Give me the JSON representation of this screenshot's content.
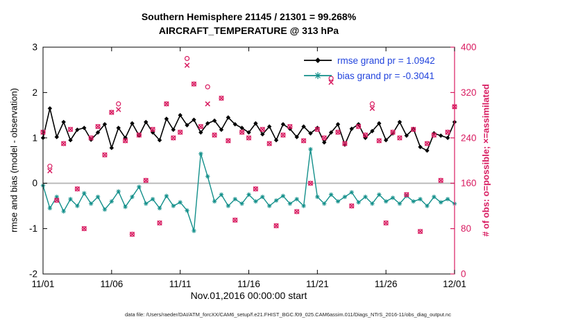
{
  "colors": {
    "rmse": "#000000",
    "bias": "#128f8a",
    "obs": "#d81b60",
    "legend_text": "#2244dd",
    "zero_line": "#bbbbbb",
    "axis": "#000000"
  },
  "caption": "data file: /Users/raeder/DAI/ATM_forcXX/CAM6_setup/f.e21.FHIST_BGC.f09_025.CAM6assim.011/Diags_NTrS_2016-11/obs_diag_output.nc",
  "chart_data": {
    "type": "line",
    "title_line1": "Southern Hemisphere 21145 / 21301 = 99.268%",
    "title_line2": "AIRCRAFT_TEMPERATURE @ 313 hPa",
    "xlabel": "Nov.01,2016 00:00:00 start",
    "ylabel_left": "rmse and bias (model - observation)",
    "ylabel_right": "# of obs: o=possible; ×=assimilated",
    "xlim": [
      0,
      30
    ],
    "ylim_left": [
      -2,
      3
    ],
    "ylim_right": [
      0,
      400
    ],
    "x_ticks": [
      0,
      5,
      10,
      15,
      20,
      25,
      30
    ],
    "x_tick_labels": [
      "11/01",
      "11/06",
      "11/11",
      "11/16",
      "11/21",
      "11/26",
      "12/01"
    ],
    "y_left_ticks": [
      -2,
      -1,
      0,
      1,
      2,
      3
    ],
    "y_left_tick_labels": [
      "-2",
      "-1",
      "0",
      "1",
      "2",
      "3"
    ],
    "y_right_ticks": [
      0,
      80,
      160,
      240,
      320,
      400
    ],
    "y_right_tick_labels": [
      "0",
      "80",
      "160",
      "240",
      "320",
      "400"
    ],
    "grand": {
      "rmse": 1.0942,
      "bias": -0.3041
    },
    "x": [
      0,
      0.5,
      1,
      1.5,
      2,
      2.5,
      3,
      3.5,
      4,
      4.5,
      5,
      5.5,
      6,
      6.5,
      7,
      7.5,
      8,
      8.5,
      9,
      9.5,
      10,
      10.5,
      11,
      11.5,
      12,
      12.5,
      13,
      13.5,
      14,
      14.5,
      15,
      15.5,
      16,
      16.5,
      17,
      17.5,
      18,
      18.5,
      19,
      19.5,
      20,
      20.5,
      21,
      21.5,
      22,
      22.5,
      23,
      23.5,
      24,
      24.5,
      25,
      25.5,
      26,
      26.5,
      27,
      27.5,
      28,
      28.5,
      29,
      29.5,
      30
    ],
    "series": [
      {
        "name": "rmse",
        "legend": "rmse grand pr = 1.0942",
        "color_key": "rmse",
        "marker": "diamond",
        "values": [
          1.0,
          1.65,
          1.02,
          1.35,
          0.95,
          1.18,
          1.22,
          0.96,
          1.12,
          1.3,
          0.78,
          1.22,
          1.0,
          1.32,
          1.05,
          1.35,
          1.12,
          0.95,
          1.42,
          1.18,
          1.5,
          1.28,
          1.4,
          1.12,
          1.32,
          1.38,
          1.18,
          1.45,
          1.3,
          1.22,
          1.12,
          1.32,
          1.08,
          1.25,
          0.95,
          1.3,
          1.2,
          1.02,
          1.25,
          1.1,
          1.22,
          0.9,
          1.12,
          1.3,
          0.85,
          1.2,
          1.3,
          1.0,
          1.15,
          1.32,
          0.95,
          1.1,
          1.35,
          1.05,
          1.2,
          0.8,
          0.72,
          1.1,
          1.05,
          1.0,
          1.35
        ]
      },
      {
        "name": "bias",
        "legend": "bias grand pr = -0.3041",
        "color_key": "bias",
        "marker": "asterisk",
        "values": [
          -0.05,
          -0.55,
          -0.3,
          -0.62,
          -0.35,
          -0.5,
          -0.22,
          -0.45,
          -0.3,
          -0.58,
          -0.4,
          -0.18,
          -0.52,
          -0.3,
          -0.08,
          -0.45,
          -0.35,
          -0.55,
          -0.28,
          -0.5,
          -0.42,
          -0.6,
          -1.05,
          0.65,
          0.15,
          -0.4,
          -0.25,
          -0.5,
          -0.35,
          -0.45,
          -0.25,
          -0.4,
          -0.3,
          -0.5,
          -0.38,
          -0.28,
          -0.45,
          -0.35,
          -0.5,
          0.75,
          -0.3,
          -0.45,
          -0.25,
          -0.4,
          -0.3,
          -0.2,
          -0.42,
          -0.3,
          -0.45,
          -0.25,
          -0.4,
          -0.32,
          -0.45,
          -0.28,
          -0.4,
          -0.35,
          -0.5,
          -0.3,
          -0.42,
          -0.35,
          -0.45
        ]
      }
    ],
    "scatter": [
      {
        "name": "obs_possible",
        "marker": "circle",
        "values": [
          250,
          190,
          130,
          230,
          255,
          150,
          80,
          240,
          260,
          210,
          285,
          300,
          235,
          70,
          245,
          165,
          255,
          90,
          300,
          240,
          250,
          380,
          335,
          260,
          330,
          245,
          310,
          235,
          95,
          250,
          240,
          150,
          255,
          230,
          85,
          245,
          260,
          110,
          235,
          160,
          255,
          240,
          345,
          250,
          230,
          120,
          260,
          245,
          300,
          235,
          90,
          250,
          240,
          140,
          255,
          75,
          230,
          245,
          165,
          250,
          295
        ]
      },
      {
        "name": "obs_assimilated",
        "marker": "x",
        "values": [
          250,
          182,
          130,
          230,
          255,
          150,
          80,
          240,
          260,
          210,
          285,
          290,
          235,
          70,
          245,
          165,
          255,
          90,
          300,
          240,
          250,
          368,
          335,
          260,
          300,
          245,
          310,
          235,
          95,
          250,
          240,
          150,
          255,
          230,
          85,
          245,
          260,
          110,
          235,
          160,
          255,
          240,
          338,
          250,
          230,
          120,
          260,
          245,
          292,
          235,
          90,
          250,
          240,
          140,
          255,
          75,
          230,
          245,
          165,
          250,
          295
        ]
      }
    ]
  }
}
